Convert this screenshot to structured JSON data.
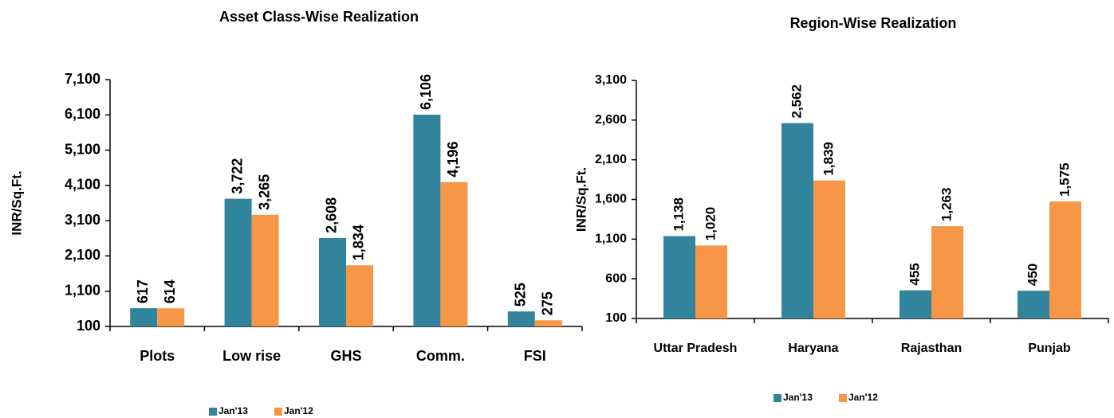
{
  "chart_data": [
    {
      "type": "bar",
      "title": "Asset Class-Wise Realization",
      "y_label": "INR/Sq.Ft.",
      "categories": [
        "Plots",
        "Low rise",
        "GHS",
        "Comm.",
        "FSI"
      ],
      "series": [
        {
          "name": "Jan'13",
          "color": "#31849b",
          "values": [
            617,
            3722,
            2608,
            6106,
            525
          ],
          "value_labels": [
            "617",
            "3,722",
            "2,608",
            "6,106",
            "525"
          ]
        },
        {
          "name": "Jan'12",
          "color": "#f79646",
          "values": [
            614,
            3265,
            1834,
            4196,
            275
          ],
          "value_labels": [
            "614",
            "3,265",
            "1,834",
            "4,196",
            "275"
          ]
        }
      ],
      "ylim": [
        100,
        7100
      ],
      "yticks": [
        100,
        {
          "value": 1100,
          "label": "1,100"
        },
        {
          "value": 2100,
          "label": "2,100"
        },
        {
          "value": 3100,
          "label": "3,100"
        },
        {
          "value": 4100,
          "label": "4,100"
        },
        {
          "value": 5100,
          "label": "5,100"
        },
        {
          "value": 6100,
          "label": "6,100"
        },
        {
          "value": 7100,
          "label": "7,100"
        }
      ],
      "grid": false,
      "legend": "bottom"
    },
    {
      "type": "bar",
      "title": "Region-Wise Realization",
      "y_label": "INR/Sq.Ft.",
      "categories": [
        "Uttar Pradesh",
        "Haryana",
        "Rajasthan",
        "Punjab"
      ],
      "series": [
        {
          "name": "Jan'13",
          "color": "#31849b",
          "values": [
            1138,
            2562,
            455,
            450
          ],
          "value_labels": [
            "1,138",
            "2,562",
            "455",
            "450"
          ]
        },
        {
          "name": "Jan'12",
          "color": "#f79646",
          "values": [
            1020,
            1839,
            1263,
            1575
          ],
          "value_labels": [
            "1,020",
            "1,839",
            "1,263",
            "1,575"
          ]
        }
      ],
      "ylim": [
        100,
        3100
      ],
      "yticks": [
        100,
        600,
        {
          "value": 1100,
          "label": "1,100"
        },
        {
          "value": 1600,
          "label": "1,600"
        },
        {
          "value": 2100,
          "label": "2,100"
        },
        {
          "value": 2600,
          "label": "2,600"
        },
        {
          "value": 3100,
          "label": "3,100"
        }
      ],
      "grid": false,
      "legend": "bottom"
    }
  ]
}
